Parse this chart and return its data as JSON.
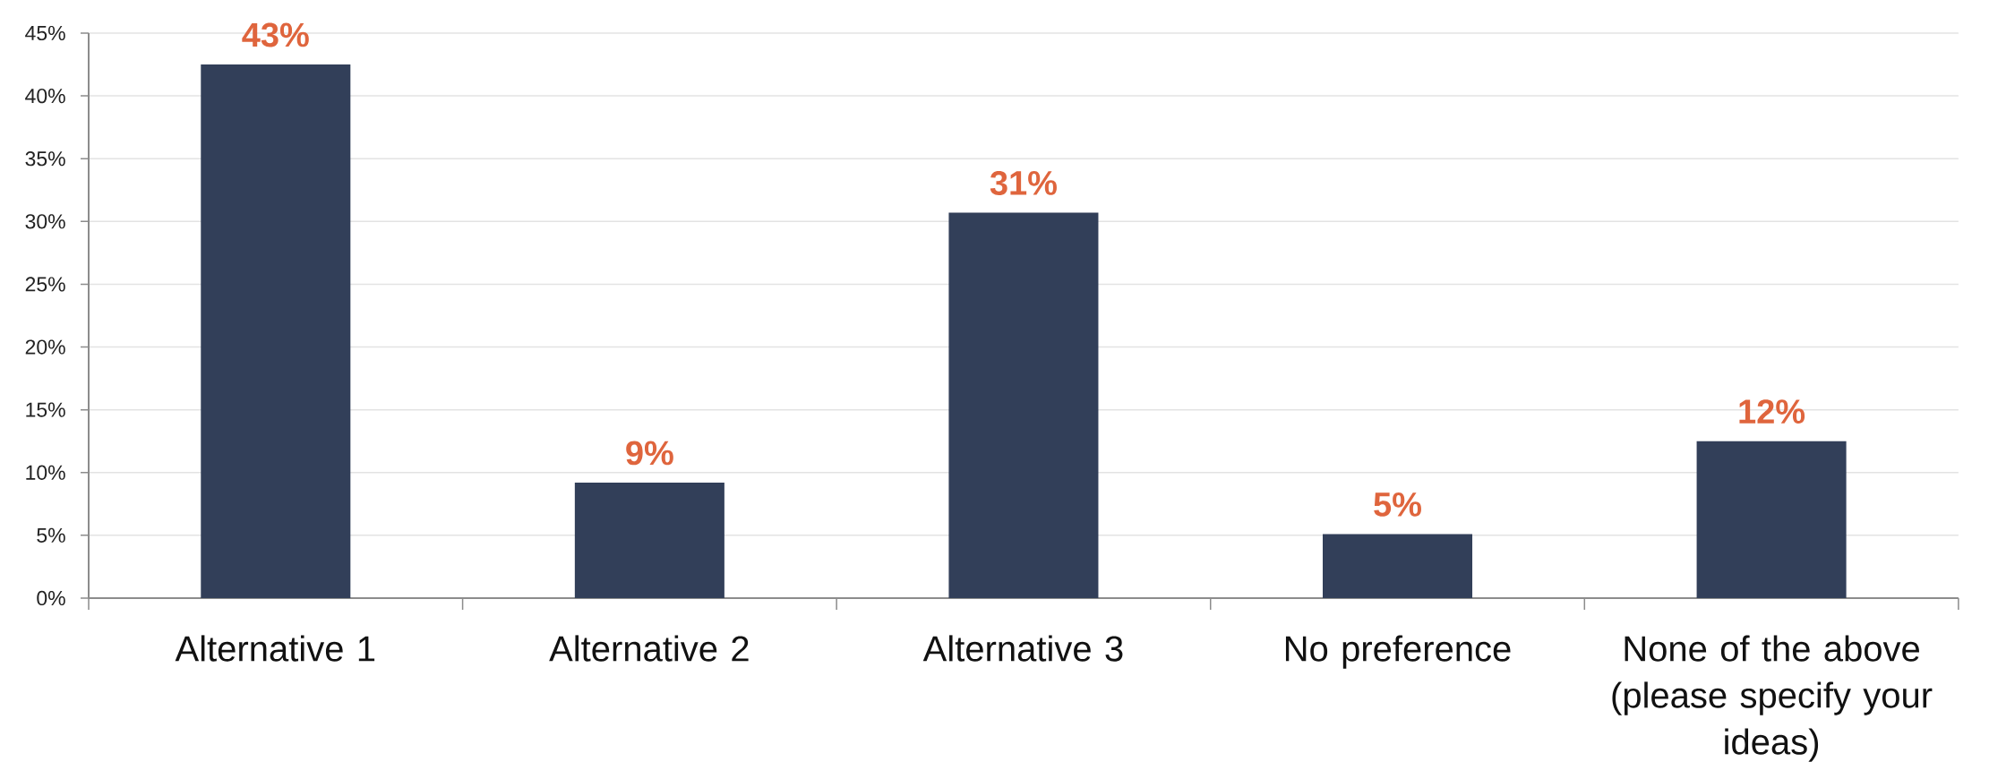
{
  "chart_data": {
    "type": "bar",
    "categories": [
      "Alternative 1",
      "Alternative 2",
      "Alternative 3",
      "No preference",
      "None of the above (please specify your ideas)"
    ],
    "values": [
      42.5,
      9.2,
      30.7,
      5.1,
      12.5
    ],
    "value_labels": [
      "43%",
      "9%",
      "31%",
      "5%",
      "12%"
    ],
    "color": "#323f59",
    "ylim": [
      0,
      45
    ],
    "yticks": [
      {
        "value": 0,
        "label": "0%"
      },
      {
        "value": 5,
        "label": "5%"
      },
      {
        "value": 10,
        "label": "10%"
      },
      {
        "value": 15,
        "label": "15%"
      },
      {
        "value": 20,
        "label": "20%"
      },
      {
        "value": 25,
        "label": "25%"
      },
      {
        "value": 30,
        "label": "30%"
      },
      {
        "value": 35,
        "label": "35%"
      },
      {
        "value": 40,
        "label": "40%"
      },
      {
        "value": 45,
        "label": "45%"
      }
    ],
    "grid": "y"
  }
}
